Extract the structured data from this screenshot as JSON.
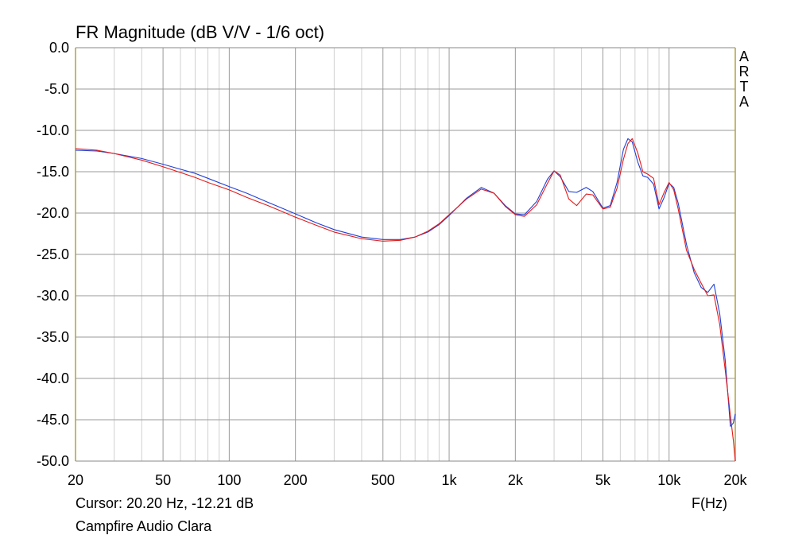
{
  "chart_data": {
    "type": "line",
    "title": "FR Magnitude (dB V/V - 1/6 oct)",
    "xlabel": "F(Hz)",
    "ylabel": "",
    "xscale": "log",
    "xlim": [
      20,
      20000
    ],
    "ylim": [
      -50,
      0
    ],
    "grid": true,
    "y_ticks": [
      0,
      -5,
      -10,
      -15,
      -20,
      -25,
      -30,
      -35,
      -40,
      -45,
      -50
    ],
    "y_tick_labels": [
      "0.0",
      "-5.0",
      "-10.0",
      "-15.0",
      "-20.0",
      "-25.0",
      "-30.0",
      "-35.0",
      "-40.0",
      "-45.0",
      "-50.0"
    ],
    "x_ticks": [
      20,
      50,
      100,
      200,
      500,
      1000,
      2000,
      5000,
      10000,
      20000
    ],
    "x_tick_labels": [
      "20",
      "50",
      "100",
      "200",
      "500",
      "1k",
      "2k",
      "5k",
      "10k",
      "20k"
    ],
    "side_label": "ARTA",
    "cursor_text": "Cursor: 20.20 Hz, -12.21 dB",
    "caption": "Campfire Audio Clara",
    "series": [
      {
        "color": "#1f3fd6",
        "points": [
          [
            20,
            -12.4
          ],
          [
            25,
            -12.5
          ],
          [
            30,
            -12.8
          ],
          [
            40,
            -13.4
          ],
          [
            50,
            -14.1
          ],
          [
            60,
            -14.7
          ],
          [
            70,
            -15.2
          ],
          [
            80,
            -15.8
          ],
          [
            100,
            -16.8
          ],
          [
            120,
            -17.6
          ],
          [
            150,
            -18.7
          ],
          [
            170,
            -19.3
          ],
          [
            200,
            -20.1
          ],
          [
            250,
            -21.2
          ],
          [
            300,
            -22.0
          ],
          [
            400,
            -22.9
          ],
          [
            500,
            -23.2
          ],
          [
            600,
            -23.2
          ],
          [
            700,
            -22.9
          ],
          [
            800,
            -22.3
          ],
          [
            900,
            -21.4
          ],
          [
            1000,
            -20.3
          ],
          [
            1200,
            -18.2
          ],
          [
            1400,
            -16.9
          ],
          [
            1600,
            -17.6
          ],
          [
            1800,
            -19.1
          ],
          [
            2000,
            -20.1
          ],
          [
            2200,
            -20.2
          ],
          [
            2500,
            -18.6
          ],
          [
            2800,
            -15.9
          ],
          [
            3000,
            -14.9
          ],
          [
            3200,
            -15.6
          ],
          [
            3500,
            -17.4
          ],
          [
            3800,
            -17.5
          ],
          [
            4200,
            -16.9
          ],
          [
            4500,
            -17.4
          ],
          [
            5000,
            -19.4
          ],
          [
            5400,
            -19.1
          ],
          [
            5800,
            -16.3
          ],
          [
            6200,
            -12.3
          ],
          [
            6500,
            -11.0
          ],
          [
            6800,
            -11.4
          ],
          [
            7200,
            -13.8
          ],
          [
            7600,
            -15.5
          ],
          [
            8000,
            -15.7
          ],
          [
            8500,
            -16.5
          ],
          [
            9000,
            -19.5
          ],
          [
            9500,
            -18.1
          ],
          [
            10000,
            -16.4
          ],
          [
            10500,
            -16.9
          ],
          [
            11000,
            -18.8
          ],
          [
            12000,
            -23.8
          ],
          [
            13000,
            -27.2
          ],
          [
            14000,
            -29.0
          ],
          [
            15000,
            -29.6
          ],
          [
            16000,
            -28.6
          ],
          [
            17000,
            -32.2
          ],
          [
            18000,
            -37.8
          ],
          [
            19000,
            -45.8
          ],
          [
            19600,
            -45.4
          ],
          [
            20000,
            -44.3
          ]
        ]
      },
      {
        "color": "#e21a1a",
        "points": [
          [
            20,
            -12.2
          ],
          [
            25,
            -12.4
          ],
          [
            30,
            -12.8
          ],
          [
            40,
            -13.6
          ],
          [
            50,
            -14.4
          ],
          [
            60,
            -15.1
          ],
          [
            70,
            -15.7
          ],
          [
            80,
            -16.3
          ],
          [
            100,
            -17.2
          ],
          [
            120,
            -18.1
          ],
          [
            150,
            -19.1
          ],
          [
            170,
            -19.7
          ],
          [
            200,
            -20.5
          ],
          [
            250,
            -21.5
          ],
          [
            300,
            -22.3
          ],
          [
            400,
            -23.1
          ],
          [
            500,
            -23.4
          ],
          [
            600,
            -23.3
          ],
          [
            700,
            -22.9
          ],
          [
            800,
            -22.2
          ],
          [
            900,
            -21.3
          ],
          [
            1000,
            -20.2
          ],
          [
            1200,
            -18.3
          ],
          [
            1400,
            -17.1
          ],
          [
            1600,
            -17.6
          ],
          [
            1800,
            -19.2
          ],
          [
            2000,
            -20.2
          ],
          [
            2200,
            -20.4
          ],
          [
            2500,
            -19.0
          ],
          [
            2800,
            -16.4
          ],
          [
            3000,
            -14.9
          ],
          [
            3200,
            -15.4
          ],
          [
            3500,
            -18.3
          ],
          [
            3800,
            -19.1
          ],
          [
            4200,
            -17.7
          ],
          [
            4500,
            -17.8
          ],
          [
            5000,
            -19.5
          ],
          [
            5400,
            -19.3
          ],
          [
            5800,
            -17.0
          ],
          [
            6200,
            -13.5
          ],
          [
            6500,
            -11.6
          ],
          [
            6800,
            -11.0
          ],
          [
            7200,
            -12.7
          ],
          [
            7600,
            -15.0
          ],
          [
            8000,
            -15.3
          ],
          [
            8500,
            -15.8
          ],
          [
            9000,
            -19.0
          ],
          [
            9500,
            -17.5
          ],
          [
            10000,
            -16.3
          ],
          [
            10500,
            -17.2
          ],
          [
            11000,
            -19.5
          ],
          [
            12000,
            -24.5
          ],
          [
            13000,
            -26.8
          ],
          [
            14000,
            -28.5
          ],
          [
            15000,
            -30.0
          ],
          [
            16000,
            -29.9
          ],
          [
            17000,
            -33.5
          ],
          [
            18000,
            -39.0
          ],
          [
            19000,
            -44.5
          ],
          [
            19600,
            -47.5
          ],
          [
            20000,
            -50.0
          ]
        ]
      }
    ]
  }
}
